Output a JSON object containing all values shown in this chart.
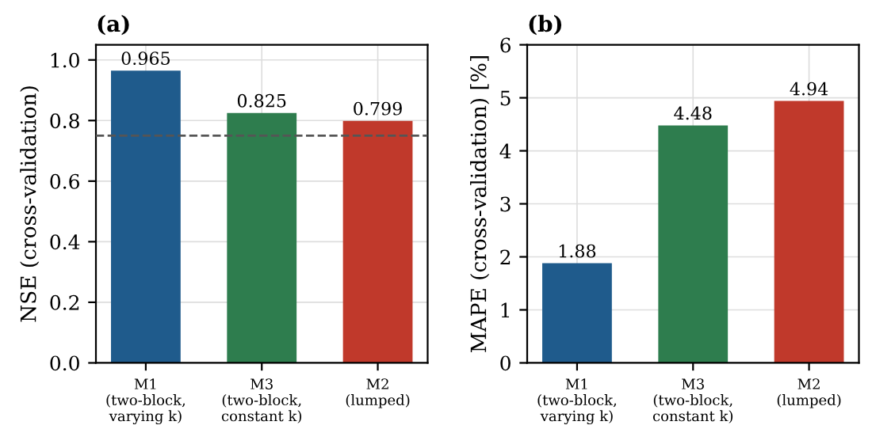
{
  "chart_data": [
    {
      "type": "bar",
      "title": "(a)",
      "ylabel": "NSE (cross-validation)",
      "categories": [
        "M1\n(two-block,\nvarying k)",
        "M3\n(two-block,\nconstant k)",
        "M2\n(lumped)"
      ],
      "values": [
        0.965,
        0.825,
        0.799
      ],
      "colors": [
        "#1f5b8c",
        "#2e7d4e",
        "#c0392b"
      ],
      "value_labels": [
        "0.965",
        "0.825",
        "0.799"
      ],
      "ylim": [
        0,
        1.05
      ],
      "yticks": [
        {
          "value": 0,
          "label": "0.0"
        },
        0.2,
        0.4,
        0.6,
        0.8,
        {
          "value": 1,
          "label": "1.0"
        }
      ],
      "ref_lines": [
        {
          "axis": "y",
          "value": 0.75,
          "color": "#555555",
          "line_style": "dashed"
        }
      ],
      "grid": true
    },
    {
      "type": "bar",
      "title": "(b)",
      "ylabel": "MAPE (cross-validation) [%]",
      "categories": [
        "M1\n(two-block,\nvarying k)",
        "M3\n(two-block,\nconstant k)",
        "M2\n(lumped)"
      ],
      "values": [
        1.88,
        4.48,
        4.94
      ],
      "colors": [
        "#1f5b8c",
        "#2e7d4e",
        "#c0392b"
      ],
      "data_labels": true,
      "ylim": [
        0,
        6
      ],
      "yticks": [
        0,
        1,
        2,
        3,
        4,
        5,
        6
      ],
      "grid": true
    }
  ]
}
